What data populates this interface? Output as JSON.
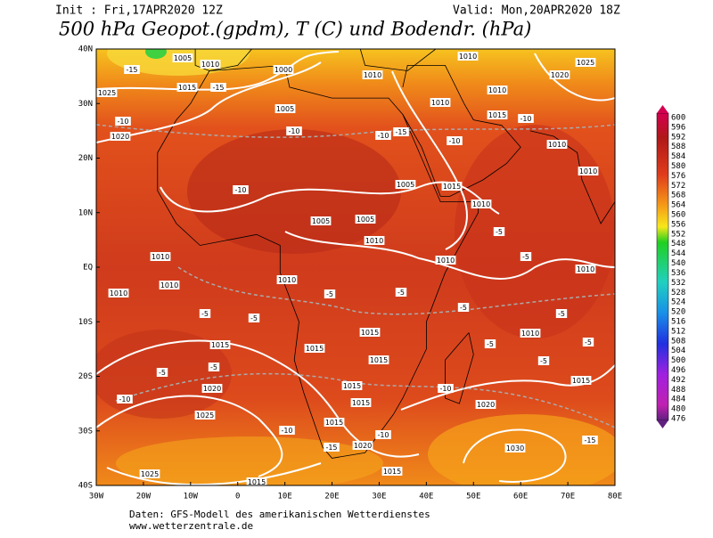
{
  "header": {
    "init": "Init : Fri,17APR2020 12Z",
    "valid": "Valid: Mon,20APR2020 18Z",
    "title": "500 hPa Geopot.(gpdm), T (C) und Bodendr. (hPa)"
  },
  "map": {
    "lat_labels": [
      "40N",
      "30N",
      "20N",
      "10N",
      "EQ",
      "10S",
      "20S",
      "30S",
      "40S"
    ],
    "lon_labels": [
      "30W",
      "20W",
      "10W",
      "0",
      "10E",
      "20E",
      "30E",
      "40E",
      "50E",
      "60E",
      "70E",
      "80E"
    ],
    "contour_labels": [
      "1005",
      "1010",
      "1015",
      "1025",
      "1020",
      "1000",
      "1005",
      "1010",
      "1010",
      "1025",
      "1020",
      "1010",
      "1010",
      "1015",
      "1010",
      "1010",
      "1005",
      "1015",
      "1010",
      "1005",
      "1005",
      "1010",
      "1010",
      "1010",
      "1010",
      "1010",
      "1010",
      "1010",
      "1015",
      "1015",
      "1010",
      "1015",
      "1015",
      "1015",
      "1020",
      "1015",
      "1015",
      "1025",
      "1020",
      "1015",
      "1030",
      "1020",
      "1015",
      "1025",
      "1015",
      "-10",
      "-10",
      "-10",
      "-15",
      "-15",
      "-15",
      "-10",
      "-10",
      "-10",
      "-10",
      "-10",
      "-10",
      "-15",
      "-5",
      "-5",
      "-5",
      "-5",
      "-5",
      "-5",
      "-5",
      "-5",
      "-5",
      "-5",
      "-5",
      "-5",
      "-5",
      "-15",
      "-10"
    ]
  },
  "colorbar": {
    "labels": [
      600,
      596,
      592,
      588,
      584,
      580,
      576,
      572,
      568,
      564,
      560,
      556,
      552,
      548,
      544,
      540,
      536,
      532,
      528,
      524,
      520,
      516,
      512,
      508,
      504,
      500,
      496,
      492,
      488,
      484,
      480,
      476
    ]
  },
  "footer": {
    "source": "Daten: GFS-Modell des amerikanischen Wetterdienstes",
    "url": "www.wetterzentrale.de"
  }
}
